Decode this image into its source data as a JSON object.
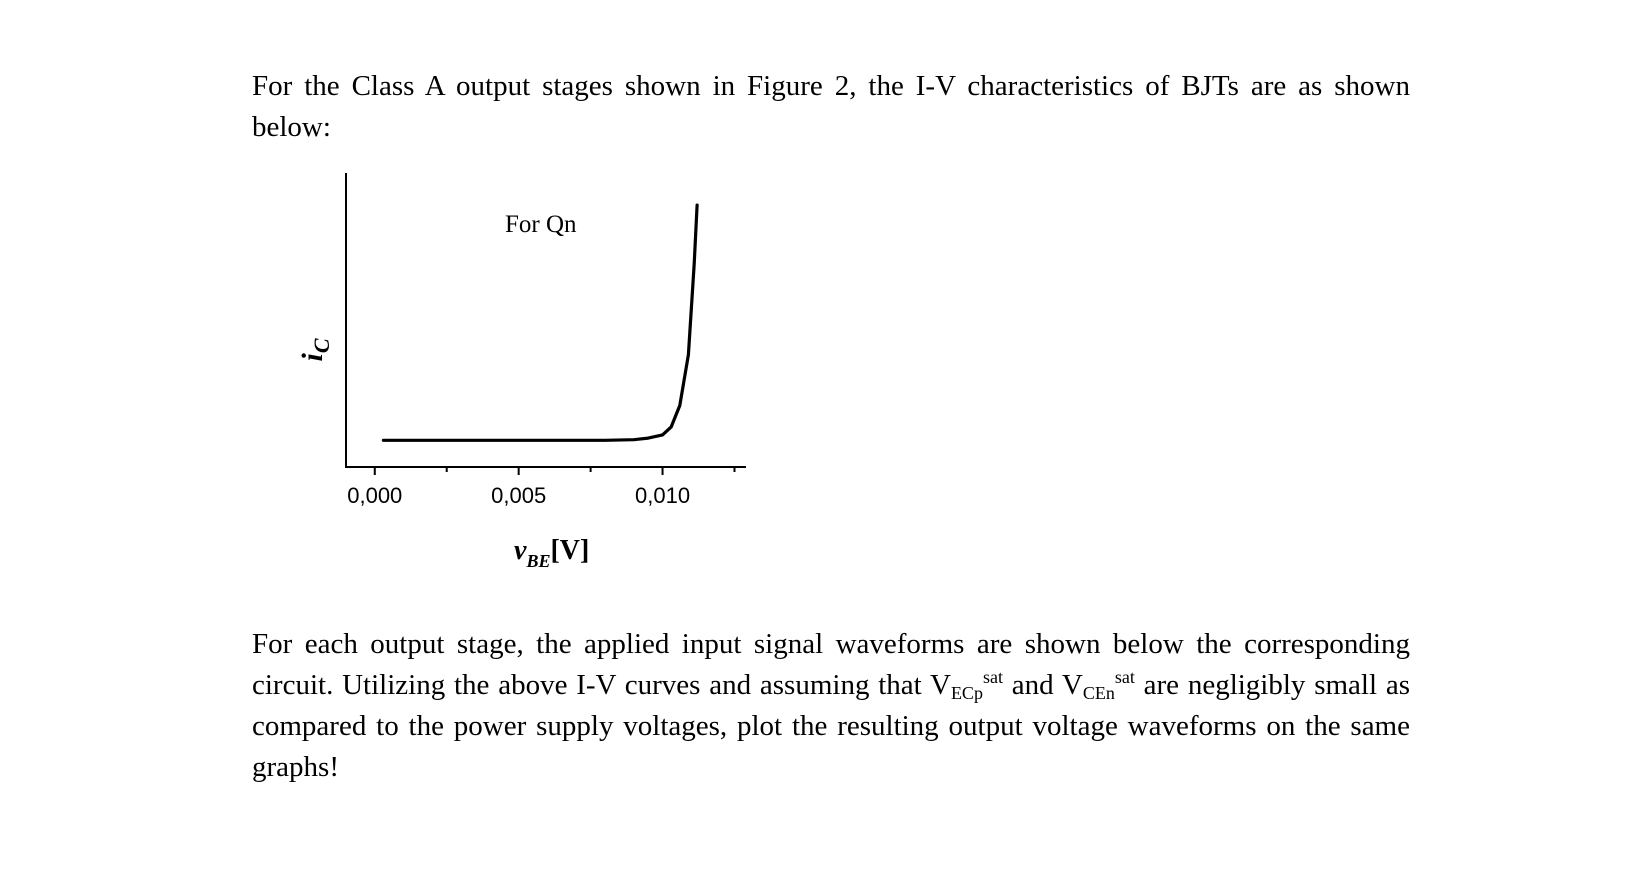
{
  "document": {
    "paragraph_1": "For the Class A output stages shown in Figure 2, the I-V characteristics of BJTs are as shown below:",
    "paragraph_2": {
      "part_a": "For each output stage, the applied input signal waveforms are shown below the corresponding circuit. Utilizing the above I-V curves and assuming that ",
      "v1_main": "V",
      "v1_sub": "ECp",
      "v1_sup": "sat",
      "part_b": " and ",
      "v2_main": "V",
      "v2_sub": "CEn",
      "v2_sup": "sat",
      "part_c": " are negligibly small as compared to the power supply voltages, plot the resulting output voltage waveforms on the same graphs!"
    }
  },
  "chart_data": {
    "type": "line",
    "annotation": "For Qn",
    "xlabel": "v",
    "xlabel_sub": "BE",
    "xlabel_unit": "[V]",
    "ylabel": "i",
    "ylabel_sub": "C",
    "xlim": [
      -0.001,
      0.0129
    ],
    "ylim": [
      -0.1,
      1.0
    ],
    "xticks": [
      0.0,
      0.005,
      0.01
    ],
    "xtick_labels": [
      "0,000",
      "0,005",
      "0,010"
    ],
    "minor_xticks": [
      0.0025,
      0.0075,
      0.0125
    ],
    "yticks": [],
    "grid": false,
    "legend": "none",
    "series": [
      {
        "x": [
          0.0003,
          0.002,
          0.004,
          0.006,
          0.008,
          0.009,
          0.0095,
          0.01,
          0.0103,
          0.0106,
          0.0109,
          0.0111,
          0.0112
        ],
        "y": [
          0.0,
          0.0,
          0.0,
          0.0,
          0.0,
          0.002,
          0.008,
          0.02,
          0.05,
          0.13,
          0.32,
          0.66,
          0.88
        ],
        "color": "#000000"
      }
    ]
  }
}
